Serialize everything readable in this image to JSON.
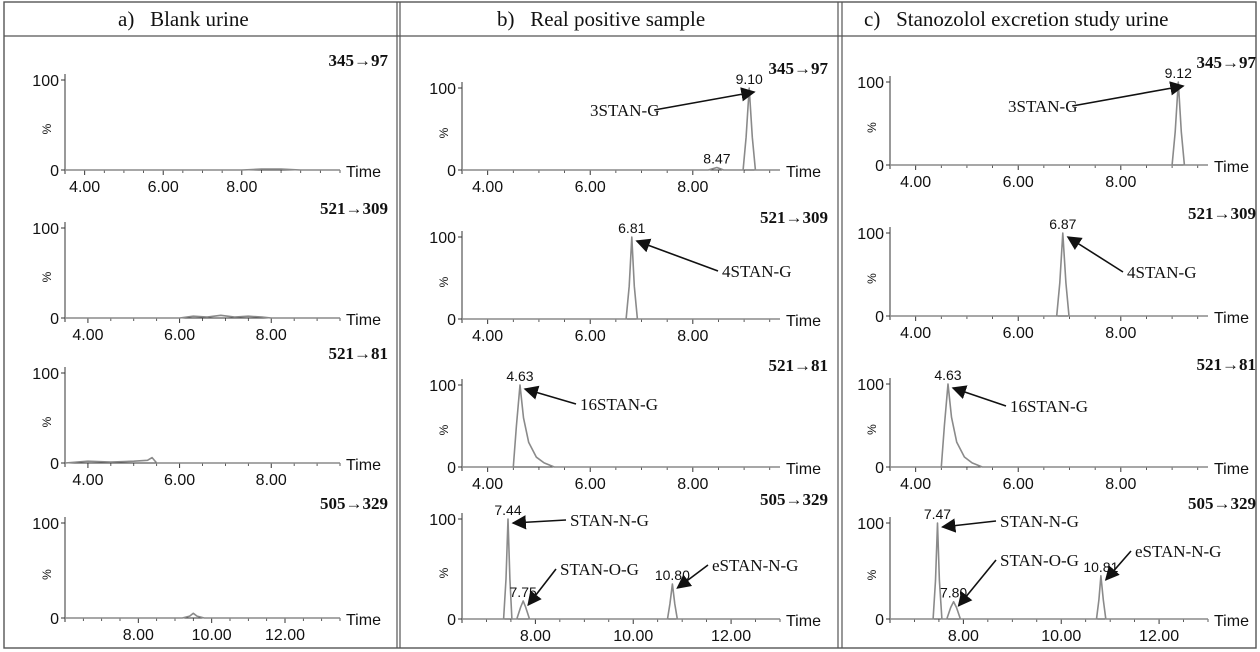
{
  "columns": [
    {
      "letter": "a)",
      "title": "Blank urine"
    },
    {
      "letter": "b)",
      "title": "Real positive sample"
    },
    {
      "letter": "c)",
      "title": "Stanozolol excretion study urine"
    }
  ],
  "axis_text": {
    "y_max": "100",
    "y_min": "0",
    "y_unit": "%",
    "x_title": "Time"
  },
  "colors": {
    "frame": "#555555",
    "axis": "#333333",
    "trace": "#8a8a8a",
    "text": "#111111"
  },
  "chart_data": [
    {
      "type": "line",
      "panel": "a1",
      "transition": "345→97",
      "x_ticks": [
        4.0,
        6.0,
        8.0
      ],
      "tick_labels": [
        "4.00",
        "6.00",
        "8.00"
      ],
      "xlim": [
        3.5,
        10.5
      ],
      "ylim": [
        0,
        100
      ],
      "series": [
        {
          "x": [
            3.5,
            8.0,
            8.5,
            9.0,
            9.5,
            10.5
          ],
          "y": [
            0,
            0,
            1,
            1,
            0,
            0
          ]
        }
      ],
      "peak_labels": [],
      "annotations": []
    },
    {
      "type": "line",
      "panel": "a2",
      "transition": "521→309",
      "x_ticks": [
        4.0,
        6.0,
        8.0
      ],
      "tick_labels": [
        "4.00",
        "6.00",
        "8.00"
      ],
      "xlim": [
        3.5,
        9.5
      ],
      "ylim": [
        0,
        100
      ],
      "series": [
        {
          "x": [
            3.5,
            6.0,
            6.3,
            6.6,
            6.9,
            7.2,
            7.5,
            7.8,
            8.0,
            9.5
          ],
          "y": [
            0,
            0,
            2,
            1,
            3,
            1,
            2,
            1,
            0,
            0
          ]
        }
      ],
      "peak_labels": [],
      "annotations": []
    },
    {
      "type": "line",
      "panel": "a3",
      "transition": "521→81",
      "x_ticks": [
        4.0,
        6.0,
        8.0
      ],
      "tick_labels": [
        "4.00",
        "6.00",
        "8.00"
      ],
      "xlim": [
        3.5,
        9.5
      ],
      "ylim": [
        0,
        100
      ],
      "series": [
        {
          "x": [
            3.5,
            4.0,
            4.5,
            5.0,
            5.3,
            5.4,
            5.5,
            9.5
          ],
          "y": [
            0,
            2,
            1,
            2,
            3,
            6,
            0,
            0
          ]
        }
      ],
      "peak_labels": [],
      "annotations": []
    },
    {
      "type": "line",
      "panel": "a4",
      "transition": "505→329",
      "x_ticks": [
        8.0,
        10.0,
        12.0
      ],
      "tick_labels": [
        "8.00",
        "10.00",
        "12.00"
      ],
      "xlim": [
        6.0,
        13.5
      ],
      "ylim": [
        0,
        100
      ],
      "series": [
        {
          "x": [
            6.0,
            9.2,
            9.4,
            9.5,
            9.6,
            9.8,
            13.5
          ],
          "y": [
            0,
            0,
            2,
            5,
            2,
            0,
            0
          ]
        }
      ],
      "peak_labels": [],
      "annotations": []
    },
    {
      "type": "line",
      "panel": "b1",
      "transition": "345→97",
      "x_ticks": [
        4.0,
        6.0,
        8.0
      ],
      "tick_labels": [
        "4.00",
        "6.00",
        "8.00"
      ],
      "xlim": [
        3.5,
        9.7
      ],
      "ylim": [
        0,
        100
      ],
      "series": [
        {
          "x": [
            3.5,
            8.3,
            8.47,
            8.6,
            8.98,
            9.04,
            9.1,
            9.16,
            9.22,
            9.7
          ],
          "y": [
            0,
            0,
            3,
            0,
            0,
            40,
            100,
            40,
            0,
            0
          ]
        }
      ],
      "peak_labels": [
        {
          "x": 9.1,
          "y": 100,
          "text": "9.10"
        },
        {
          "x": 8.47,
          "y": 3,
          "text": "8.47"
        }
      ],
      "annotations": [
        {
          "text": "3STAN-G",
          "to_x": 9.1,
          "to_y": 100
        }
      ]
    },
    {
      "type": "line",
      "panel": "b2",
      "transition": "521→309",
      "x_ticks": [
        4.0,
        6.0,
        8.0
      ],
      "tick_labels": [
        "4.00",
        "6.00",
        "8.00"
      ],
      "xlim": [
        3.5,
        9.7
      ],
      "ylim": [
        0,
        100
      ],
      "series": [
        {
          "x": [
            3.5,
            6.7,
            6.76,
            6.81,
            6.86,
            6.92,
            9.7
          ],
          "y": [
            0,
            0,
            40,
            100,
            40,
            0,
            0
          ]
        }
      ],
      "peak_labels": [
        {
          "x": 6.81,
          "y": 100,
          "text": "6.81"
        }
      ],
      "annotations": [
        {
          "text": "4STAN-G",
          "to_x": 6.81,
          "to_y": 100
        }
      ]
    },
    {
      "type": "line",
      "panel": "b3",
      "transition": "521→81",
      "x_ticks": [
        4.0,
        6.0,
        8.0
      ],
      "tick_labels": [
        "4.00",
        "6.00",
        "8.00"
      ],
      "xlim": [
        3.5,
        9.7
      ],
      "ylim": [
        0,
        100
      ],
      "series": [
        {
          "x": [
            3.5,
            4.5,
            4.56,
            4.63,
            4.7,
            4.8,
            4.95,
            5.1,
            5.3,
            9.7
          ],
          "y": [
            0,
            0,
            50,
            100,
            60,
            30,
            12,
            5,
            0,
            0
          ]
        }
      ],
      "peak_labels": [
        {
          "x": 4.63,
          "y": 100,
          "text": "4.63"
        }
      ],
      "annotations": [
        {
          "text": "16STAN-G",
          "to_x": 4.63,
          "to_y": 100
        }
      ]
    },
    {
      "type": "line",
      "panel": "b4",
      "transition": "505→329",
      "x_ticks": [
        8.0,
        10.0,
        12.0
      ],
      "tick_labels": [
        "8.00",
        "10.00",
        "12.00"
      ],
      "xlim": [
        6.5,
        13.0
      ],
      "ylim": [
        0,
        100
      ],
      "series": [
        {
          "x": [
            6.5,
            7.35,
            7.4,
            7.44,
            7.48,
            7.52,
            7.62,
            7.7,
            7.75,
            7.8,
            7.88,
            10.7,
            10.75,
            10.8,
            10.85,
            10.9,
            13.0
          ],
          "y": [
            0,
            0,
            40,
            100,
            40,
            0,
            0,
            12,
            18,
            12,
            0,
            0,
            15,
            35,
            15,
            0,
            0
          ]
        }
      ],
      "peak_labels": [
        {
          "x": 7.44,
          "y": 100,
          "text": "7.44"
        },
        {
          "x": 7.75,
          "y": 18,
          "text": "7.75"
        },
        {
          "x": 10.8,
          "y": 35,
          "text": "10.80"
        }
      ],
      "annotations": [
        {
          "text": "STAN-N-G",
          "to_x": 7.44,
          "to_y": 100
        },
        {
          "text": "STAN-O-G",
          "to_x": 7.75,
          "to_y": 18
        },
        {
          "text": "eSTAN-N-G",
          "to_x": 10.8,
          "to_y": 35
        }
      ]
    },
    {
      "type": "line",
      "panel": "c1",
      "transition": "345→97",
      "x_ticks": [
        4.0,
        6.0,
        8.0
      ],
      "tick_labels": [
        "4.00",
        "6.00",
        "8.00"
      ],
      "xlim": [
        3.5,
        9.7
      ],
      "ylim": [
        0,
        100
      ],
      "series": [
        {
          "x": [
            3.5,
            9.0,
            9.06,
            9.12,
            9.18,
            9.24,
            9.7
          ],
          "y": [
            0,
            0,
            40,
            100,
            40,
            0,
            0
          ]
        }
      ],
      "peak_labels": [
        {
          "x": 9.12,
          "y": 100,
          "text": "9.12"
        }
      ],
      "annotations": [
        {
          "text": "3STAN-G",
          "to_x": 9.12,
          "to_y": 100
        }
      ]
    },
    {
      "type": "line",
      "panel": "c2",
      "transition": "521→309",
      "x_ticks": [
        4.0,
        6.0,
        8.0
      ],
      "tick_labels": [
        "4.00",
        "6.00",
        "8.00"
      ],
      "xlim": [
        3.5,
        9.7
      ],
      "ylim": [
        0,
        100
      ],
      "series": [
        {
          "x": [
            3.5,
            6.75,
            6.81,
            6.87,
            6.93,
            6.99,
            9.7
          ],
          "y": [
            0,
            0,
            40,
            100,
            40,
            0,
            0
          ]
        }
      ],
      "peak_labels": [
        {
          "x": 6.87,
          "y": 100,
          "text": "6.87"
        }
      ],
      "annotations": [
        {
          "text": "4STAN-G",
          "to_x": 6.87,
          "to_y": 100
        }
      ]
    },
    {
      "type": "line",
      "panel": "c3",
      "transition": "521→81",
      "x_ticks": [
        4.0,
        6.0,
        8.0
      ],
      "tick_labels": [
        "4.00",
        "6.00",
        "8.00"
      ],
      "xlim": [
        3.5,
        9.7
      ],
      "ylim": [
        0,
        100
      ],
      "series": [
        {
          "x": [
            3.5,
            4.5,
            4.56,
            4.63,
            4.7,
            4.8,
            4.95,
            5.1,
            5.3,
            9.7
          ],
          "y": [
            0,
            0,
            50,
            100,
            60,
            30,
            12,
            5,
            0,
            0
          ]
        }
      ],
      "peak_labels": [
        {
          "x": 4.63,
          "y": 100,
          "text": "4.63"
        }
      ],
      "annotations": [
        {
          "text": "16STAN-G",
          "to_x": 4.63,
          "to_y": 100
        }
      ]
    },
    {
      "type": "line",
      "panel": "c4",
      "transition": "505→329",
      "x_ticks": [
        8.0,
        10.0,
        12.0
      ],
      "tick_labels": [
        "8.00",
        "10.00",
        "12.00"
      ],
      "xlim": [
        6.5,
        13.0
      ],
      "ylim": [
        0,
        100
      ],
      "series": [
        {
          "x": [
            6.5,
            7.38,
            7.43,
            7.47,
            7.51,
            7.56,
            7.66,
            7.74,
            7.8,
            7.86,
            7.94,
            10.72,
            10.77,
            10.81,
            10.86,
            10.91,
            13.0
          ],
          "y": [
            0,
            0,
            40,
            100,
            40,
            0,
            0,
            12,
            18,
            12,
            0,
            0,
            20,
            45,
            20,
            0,
            0
          ]
        }
      ],
      "peak_labels": [
        {
          "x": 7.47,
          "y": 100,
          "text": "7.47"
        },
        {
          "x": 7.8,
          "y": 18,
          "text": "7.80"
        },
        {
          "x": 10.81,
          "y": 45,
          "text": "10.81"
        }
      ],
      "annotations": [
        {
          "text": "STAN-N-G",
          "to_x": 7.47,
          "to_y": 100
        },
        {
          "text": "STAN-O-G",
          "to_x": 7.8,
          "to_y": 18
        },
        {
          "text": "eSTAN-N-G",
          "to_x": 10.81,
          "to_y": 45
        }
      ]
    }
  ]
}
